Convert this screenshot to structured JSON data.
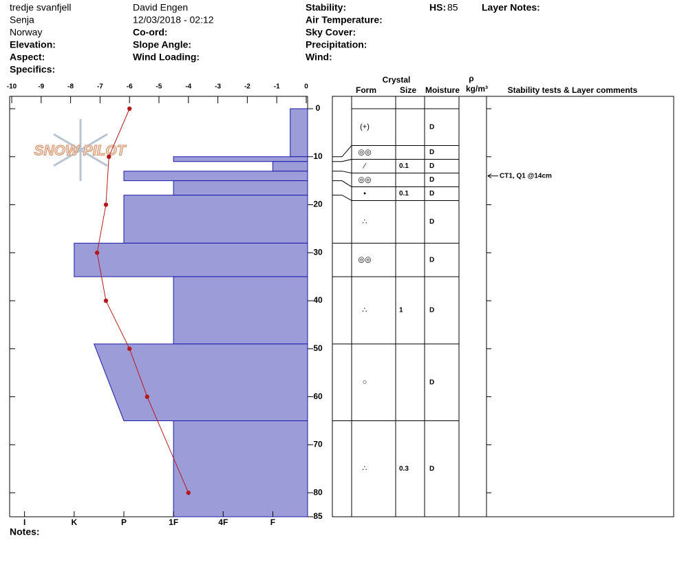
{
  "header": {
    "location": "tredje svanfjell",
    "region": "Senja",
    "country": "Norway",
    "elevation": "Elevation:",
    "aspect": "Aspect:",
    "specifics": "Specifics:",
    "observer": "David Engen",
    "datetime": "12/03/2018 - 02:12",
    "coord": "Co-ord:",
    "slope_angle": "Slope Angle:",
    "wind_loading": "Wind Loading:",
    "stability": "Stability:",
    "air_temperature": "Air Temperature:",
    "sky_cover": "Sky Cover:",
    "precipitation": "Precipitation:",
    "wind": "Wind:",
    "hs_label": "HS:",
    "hs": 85,
    "layer_notes": "Layer Notes:"
  },
  "logo": "SNOW PILOT",
  "notes": "Notes:",
  "chart_data": {
    "type": "snow-profile",
    "ylim": [
      0,
      85
    ],
    "yticks": [
      0,
      10,
      20,
      30,
      40,
      50,
      60,
      70,
      80,
      85
    ],
    "temperature": {
      "depths": [
        0,
        10,
        20,
        30,
        40,
        50,
        60,
        80
      ],
      "values": [
        -6,
        -6.7,
        -6.8,
        -7.1,
        -6.8,
        -6,
        -5.4,
        -4
      ],
      "color": "#b31b1b",
      "xlim": [
        -10,
        0
      ],
      "xticks": [
        -10,
        -9,
        -8,
        -7,
        -6,
        -5,
        -4,
        -3,
        -2,
        -1,
        0
      ]
    },
    "hardness_axis": {
      "xlim": [
        6.3,
        0.3
      ],
      "xticks": [
        {
          "value": 6,
          "label": "I"
        },
        {
          "value": 5,
          "label": "K"
        },
        {
          "value": 4,
          "label": "P"
        },
        {
          "value": 3,
          "label": "1F"
        },
        {
          "value": 2,
          "label": "4F"
        },
        {
          "value": 1,
          "label": "F"
        }
      ]
    },
    "layer_color": "#9c9cd8",
    "layers": [
      {
        "top": 0,
        "bottom": 10,
        "hardness": 0.65,
        "form": "(+)",
        "moisture": "D"
      },
      {
        "top": 10,
        "bottom": 11,
        "hardness": 3,
        "form": "◎◎",
        "moisture": "D"
      },
      {
        "top": 11,
        "bottom": 13,
        "hardness": 1,
        "form": "⁄",
        "size": 0.1,
        "moisture": "D"
      },
      {
        "top": 13,
        "bottom": 15,
        "hardness": 4,
        "form": "◎◎",
        "moisture": "D"
      },
      {
        "top": 15,
        "bottom": 18,
        "hardness": 3,
        "form": "•",
        "size": 0.1,
        "moisture": "D"
      },
      {
        "top": 18,
        "bottom": 28,
        "hardness": 4,
        "form": "∴",
        "moisture": "D"
      },
      {
        "top": 28,
        "bottom": 35,
        "hardness": 5,
        "form": "◎◎",
        "moisture": "D"
      },
      {
        "top": 35,
        "bottom": 49,
        "hardness": 3,
        "form": "∴",
        "size": 1,
        "moisture": "D"
      },
      {
        "top": 49,
        "bottom": 65,
        "hardness": 4.6,
        "hardness_bottom": 4,
        "form": "○",
        "moisture": "D"
      },
      {
        "top": 65,
        "bottom": 85,
        "hardness": 3,
        "form": "∴",
        "size": 0.3,
        "moisture": "D"
      }
    ],
    "columns": {
      "crystal": "Crystal",
      "form": "Form",
      "size": "Size",
      "moisture": "Moisture",
      "density_symbol": "ρ",
      "density_unit": "kg/m³",
      "comments": "Stability tests & Layer comments"
    },
    "stability_tests": [
      {
        "label": "CT1, Q1 @14cm",
        "depth": 14
      }
    ]
  }
}
